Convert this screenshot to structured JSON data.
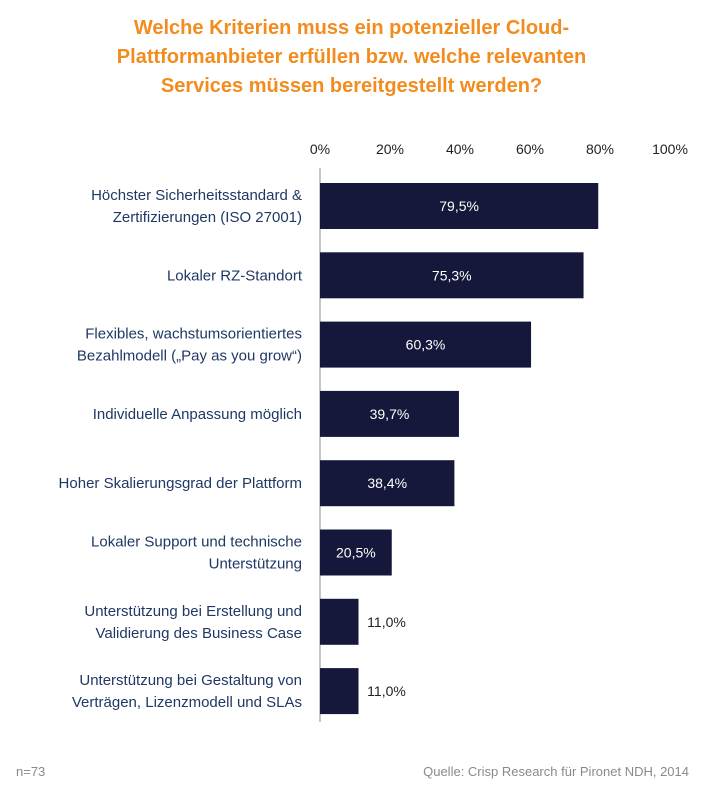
{
  "title_lines": [
    "Welche Kriterien muss ein potenzieller Cloud-",
    "Plattformanbieter erfüllen bzw. welche relevanten",
    "Services müssen bereitgestellt werden?"
  ],
  "footer": {
    "sample_size": "n=73",
    "source": "Quelle: Crisp Research für Pironet NDH, 2014"
  },
  "colors": {
    "title": "#F28C1E",
    "bar": "#15183A",
    "label": "#1F3864"
  },
  "chart_data": {
    "type": "bar",
    "orientation": "horizontal",
    "xlim": [
      0,
      100
    ],
    "x_ticks": [
      "0%",
      "20%",
      "40%",
      "60%",
      "80%",
      "100%"
    ],
    "categories": [
      [
        "Höchster Sicherheitsstandard &",
        "Zertifizierungen (ISO 27001)"
      ],
      [
        "Lokaler RZ-Standort"
      ],
      [
        "Flexibles, wachstumsorientiertes",
        "Bezahlmodell („Pay as you grow“)"
      ],
      [
        "Individuelle Anpassung möglich"
      ],
      [
        "Hoher Skalierungsgrad der Plattform"
      ],
      [
        "Lokaler Support und technische",
        "Unterstützung"
      ],
      [
        "Unterstützung bei Erstellung und",
        "Validierung des Business Case"
      ],
      [
        "Unterstützung bei Gestaltung von",
        "Verträgen, Lizenzmodell und SLAs"
      ]
    ],
    "values": [
      79.5,
      75.3,
      60.3,
      39.7,
      38.4,
      20.5,
      11.0,
      11.0
    ],
    "data_labels": [
      "79,5%",
      "75,3%",
      "60,3%",
      "39,7%",
      "38,4%",
      "20,5%",
      "11,0%",
      "11,0%"
    ]
  }
}
